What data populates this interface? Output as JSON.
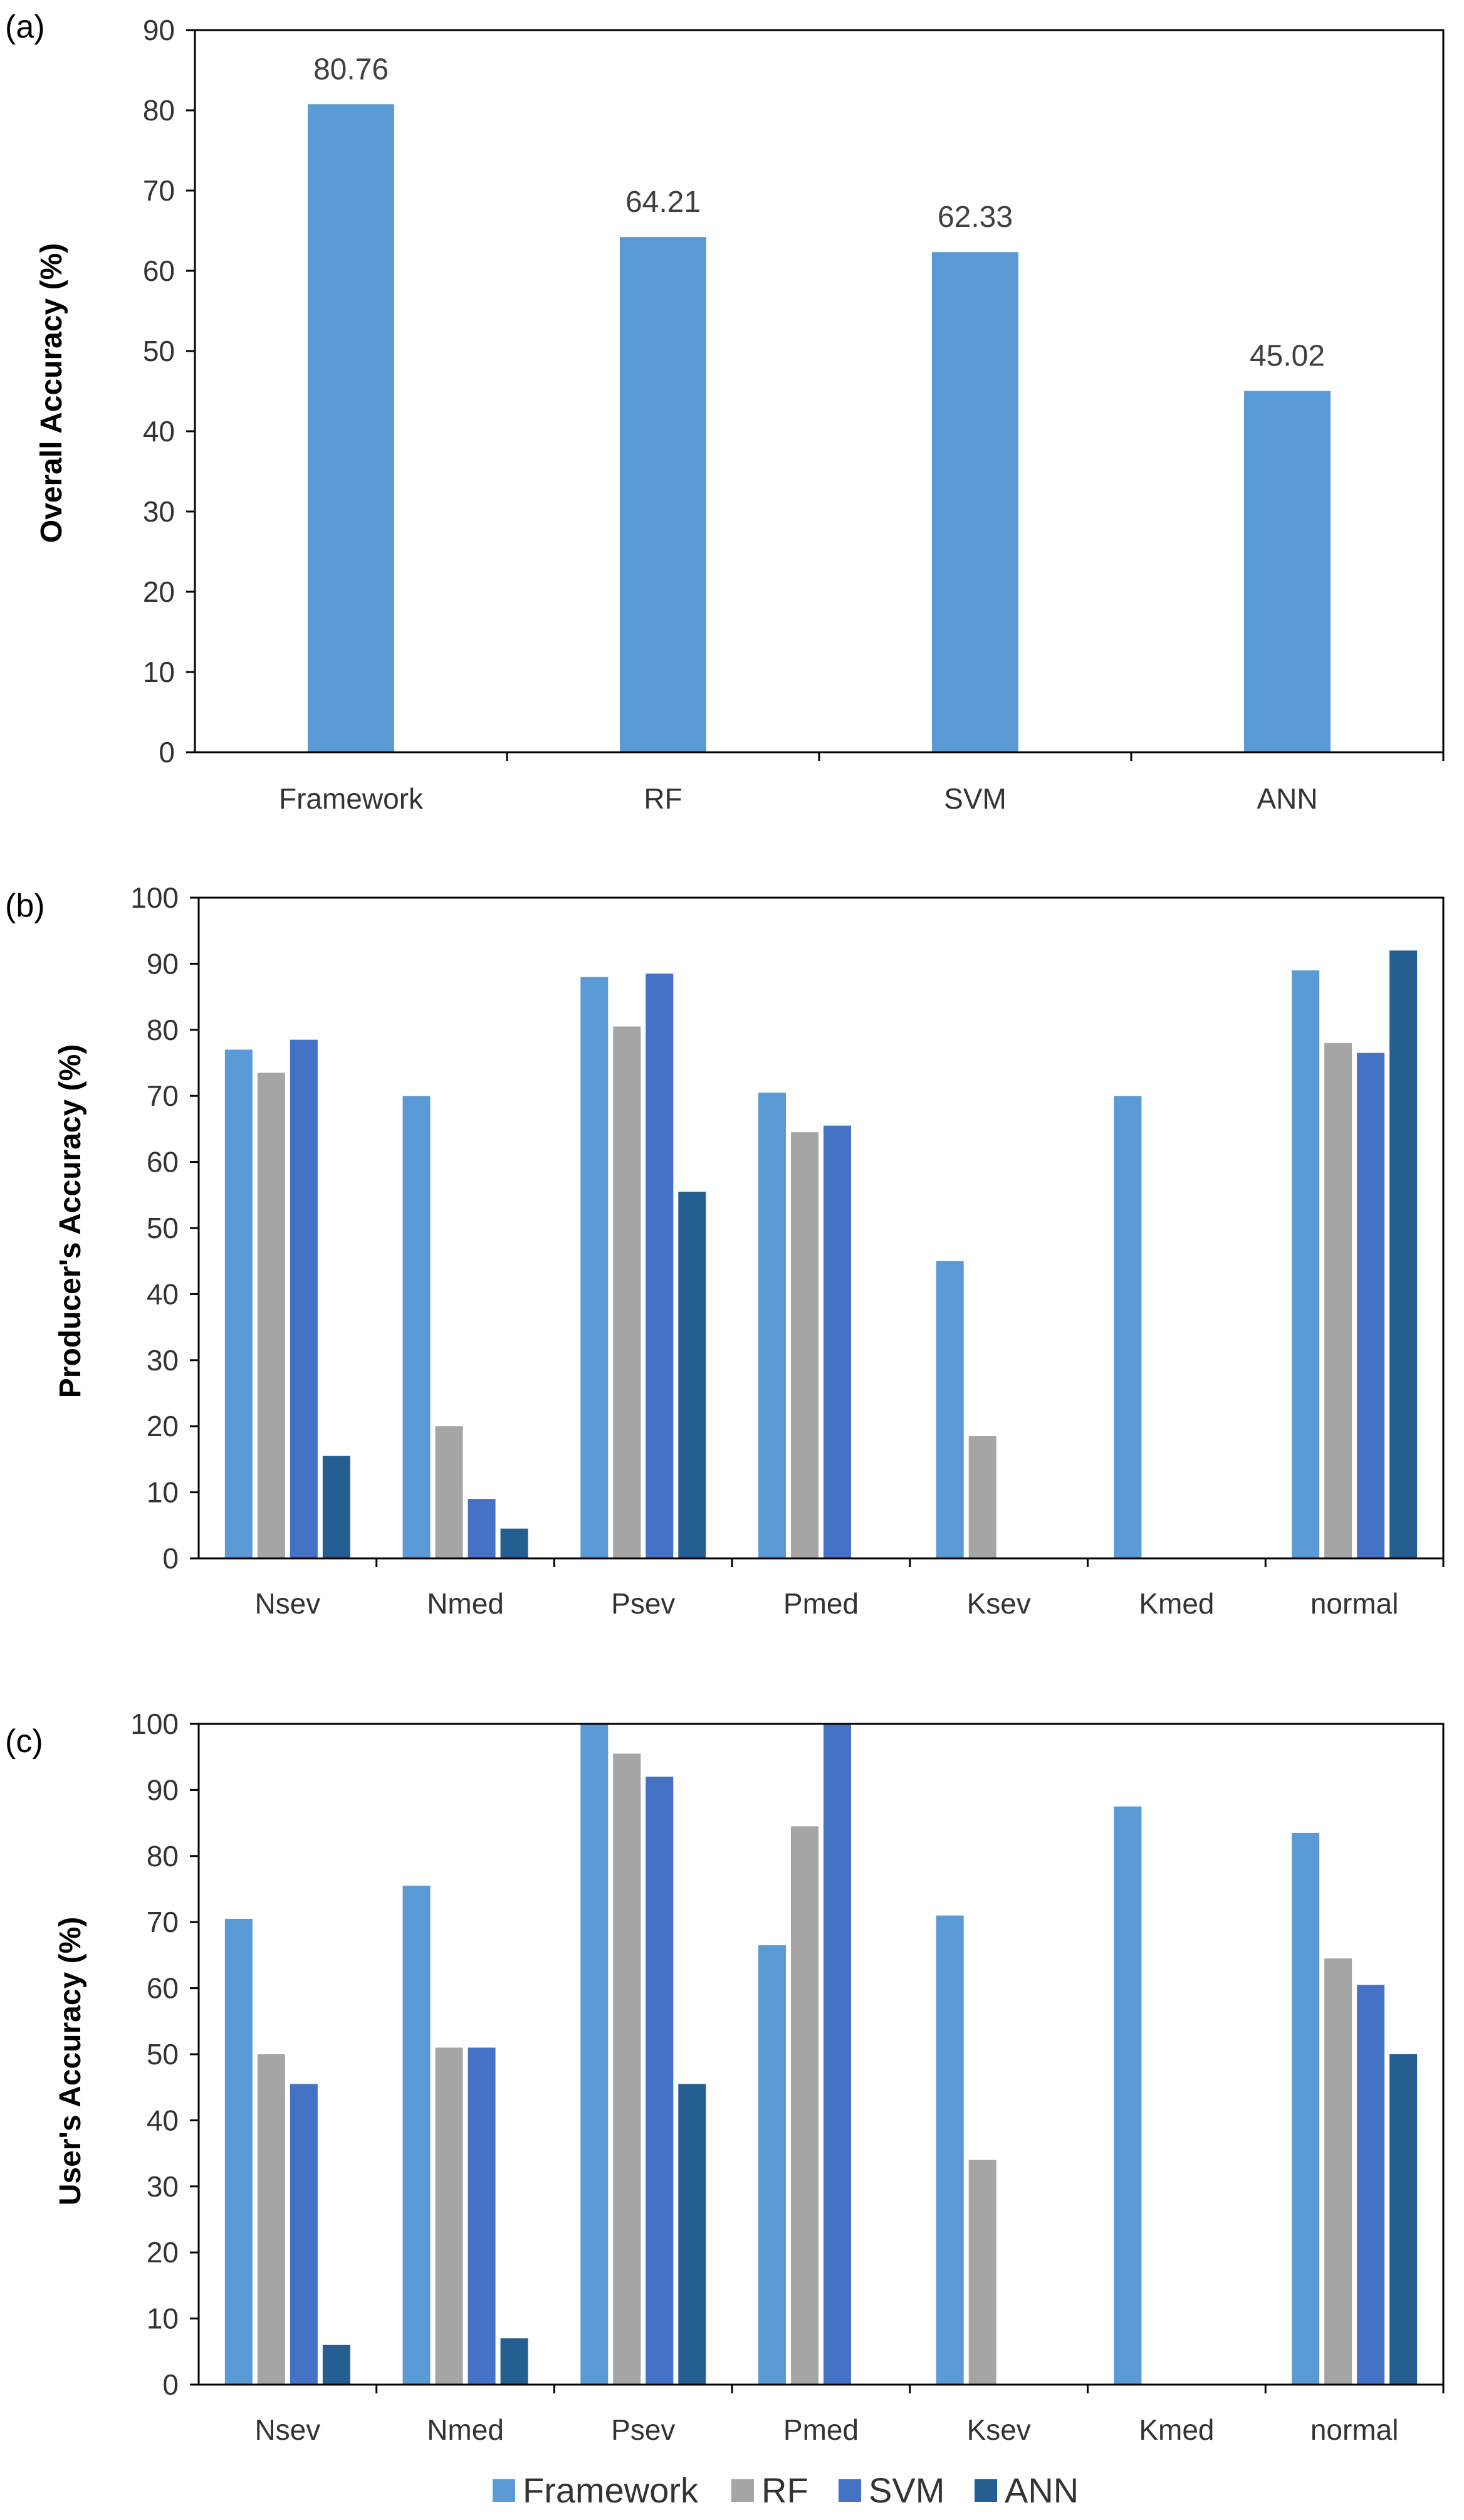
{
  "series_colors": {
    "Framework": "#5b9bd5",
    "RF": "#a5a5a5",
    "SVM": "#4472c4",
    "ANN": "#255e91"
  },
  "legend": [
    "Framework",
    "RF",
    "SVM",
    "ANN"
  ],
  "chart_data": [
    {
      "panel": "(a)",
      "type": "bar",
      "categories": [
        "Framework",
        "RF",
        "SVM",
        "ANN"
      ],
      "values": [
        80.76,
        64.21,
        62.33,
        45.02
      ],
      "data_labels": [
        "80.76",
        "64.21",
        "62.33",
        "45.02"
      ],
      "ylabel": "Overall Accuracy (%)",
      "ylim": [
        0,
        90
      ],
      "yticks": [
        0,
        10,
        20,
        30,
        40,
        50,
        60,
        70,
        80,
        90
      ],
      "grid": false
    },
    {
      "panel": "(b)",
      "type": "bar",
      "categories": [
        "Nsev",
        "Nmed",
        "Psev",
        "Pmed",
        "Ksev",
        "Kmed",
        "normal"
      ],
      "series": [
        {
          "name": "Framework",
          "values": [
            77,
            70,
            88,
            70.5,
            45,
            70,
            89
          ]
        },
        {
          "name": "RF",
          "values": [
            73.5,
            20,
            80.5,
            64.5,
            18.5,
            0,
            78
          ]
        },
        {
          "name": "SVM",
          "values": [
            78.5,
            9,
            88.5,
            65.5,
            0,
            0,
            76.5
          ]
        },
        {
          "name": "ANN",
          "values": [
            15.5,
            4.5,
            55.5,
            0,
            0,
            0,
            92
          ]
        }
      ],
      "ylabel": "Producer's  Accuracy  (%)",
      "ylim": [
        0,
        100
      ],
      "yticks": [
        0,
        10,
        20,
        30,
        40,
        50,
        60,
        70,
        80,
        90,
        100
      ],
      "grid": false
    },
    {
      "panel": "(c)",
      "type": "bar",
      "categories": [
        "Nsev",
        "Nmed",
        "Psev",
        "Pmed",
        "Ksev",
        "Kmed",
        "normal"
      ],
      "series": [
        {
          "name": "Framework",
          "values": [
            70.5,
            75.5,
            100,
            66.5,
            71,
            87.5,
            83.5
          ]
        },
        {
          "name": "RF",
          "values": [
            50,
            51,
            95.5,
            84.5,
            34,
            0,
            64.5
          ]
        },
        {
          "name": "SVM",
          "values": [
            45.5,
            51,
            92,
            100,
            0,
            0,
            60.5
          ]
        },
        {
          "name": "ANN",
          "values": [
            6,
            7,
            45.5,
            0,
            0,
            0,
            50
          ]
        }
      ],
      "ylabel": "User's Accuracy (%)",
      "ylim": [
        0,
        100
      ],
      "yticks": [
        0,
        10,
        20,
        30,
        40,
        50,
        60,
        70,
        80,
        90,
        100
      ],
      "grid": false
    }
  ]
}
